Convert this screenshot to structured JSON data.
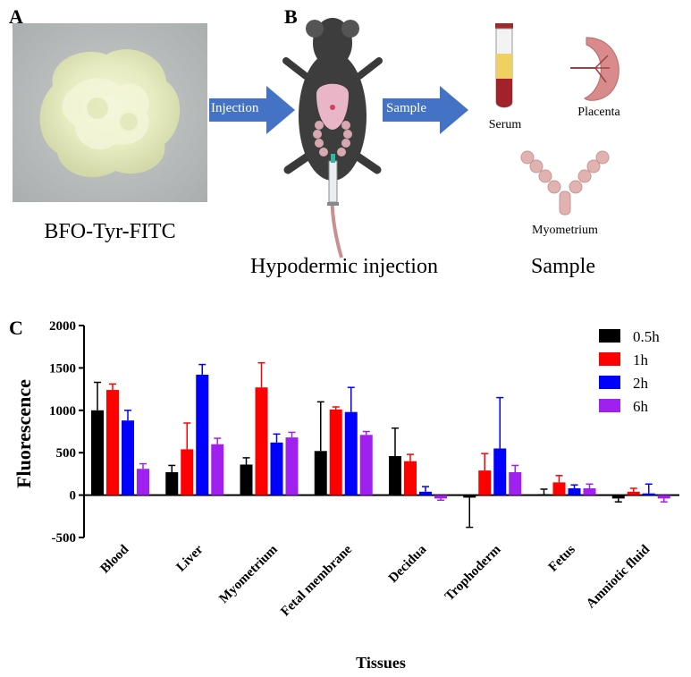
{
  "panels": {
    "a_letter": "A",
    "b_letter": "B",
    "c_letter": "C"
  },
  "panel_a": {
    "caption": "BFO-Tyr-FITC"
  },
  "panel_b": {
    "arrow1_label": "Injection",
    "arrow2_label": "Sample",
    "mouse_caption": "Hypodermic injection",
    "sample_caption": "Sample",
    "serum_label": "Serum",
    "placenta_label": "Placenta",
    "myometrium_label": "Myometrium"
  },
  "colors": {
    "arrow": "#4472c4",
    "series": [
      "#000000",
      "#ff0000",
      "#0000ff",
      "#a020f0"
    ]
  },
  "chart_data": {
    "type": "bar",
    "xlabel": "Tissues",
    "ylabel": "Fluorescence",
    "ylim": [
      -500,
      2000
    ],
    "yticks": [
      -500,
      0,
      500,
      1000,
      1500,
      2000
    ],
    "categories": [
      "Blood",
      "Liver",
      "Myometrium",
      "Fetal membrane",
      "Decidua",
      "Trophoderm",
      "Fetus",
      "Amniotic fluid"
    ],
    "legend_position": "top-right",
    "series": [
      {
        "name": "0.5h",
        "color": "#000000",
        "values": [
          1000,
          270,
          360,
          520,
          460,
          -30,
          10,
          -40
        ],
        "errors": [
          330,
          80,
          80,
          580,
          330,
          350,
          60,
          40
        ]
      },
      {
        "name": "1h",
        "color": "#ff0000",
        "values": [
          1240,
          540,
          1270,
          1010,
          400,
          290,
          150,
          40
        ],
        "errors": [
          70,
          310,
          290,
          30,
          80,
          200,
          80,
          40
        ]
      },
      {
        "name": "2h",
        "color": "#0000ff",
        "values": [
          880,
          1420,
          620,
          980,
          40,
          550,
          80,
          20
        ],
        "errors": [
          120,
          120,
          100,
          290,
          60,
          600,
          40,
          110
        ]
      },
      {
        "name": "6h",
        "color": "#a020f0",
        "values": [
          310,
          600,
          680,
          710,
          -40,
          270,
          80,
          -40
        ],
        "errors": [
          60,
          70,
          60,
          40,
          20,
          80,
          50,
          40
        ]
      }
    ]
  }
}
